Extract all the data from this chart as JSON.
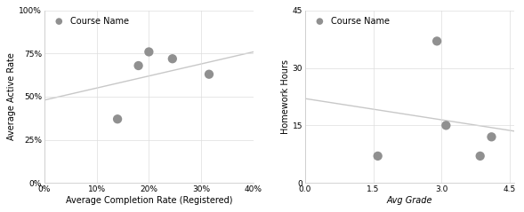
{
  "chart1": {
    "title": "Course Name",
    "xlabel": "Average Completion Rate (Registered)",
    "ylabel": "Average Active Rate",
    "scatter_x": [
      0.14,
      0.18,
      0.2,
      0.245,
      0.315
    ],
    "scatter_y": [
      0.37,
      0.68,
      0.76,
      0.72,
      0.63
    ],
    "scatter_sizes": [
      55,
      55,
      55,
      55,
      55
    ],
    "scatter_color": "#909090",
    "trendline_x": [
      0.0,
      0.4
    ],
    "trendline_y": [
      0.48,
      0.76
    ],
    "trendline_color": "#c8c8c8",
    "xlim": [
      0.0,
      0.4
    ],
    "ylim": [
      0.0,
      1.0
    ],
    "xticks": [
      0.0,
      0.1,
      0.2,
      0.3,
      0.4
    ],
    "yticks": [
      0.0,
      0.25,
      0.5,
      0.75,
      1.0
    ]
  },
  "chart2": {
    "title": "Course Name",
    "xlabel": "Avg Grade",
    "ylabel": "Homework Hours",
    "scatter_x": [
      1.6,
      2.9,
      3.1,
      3.85,
      4.1
    ],
    "scatter_y": [
      7,
      37,
      15,
      7,
      12
    ],
    "scatter_sizes": [
      55,
      55,
      55,
      55,
      55
    ],
    "scatter_color": "#909090",
    "trendline_x": [
      0.0,
      4.6
    ],
    "trendline_y": [
      22.0,
      13.5
    ],
    "trendline_color": "#c8c8c8",
    "xlim": [
      0.0,
      4.6
    ],
    "ylim": [
      0,
      45
    ],
    "xticks": [
      0.0,
      1.5,
      3.0,
      4.5
    ],
    "yticks": [
      0,
      15,
      30,
      45
    ]
  },
  "background_color": "#ffffff",
  "panel_color": "#ffffff",
  "legend_marker_color": "#909090",
  "legend_fontsize": 7,
  "axis_label_fontsize": 7,
  "tick_fontsize": 6.5
}
